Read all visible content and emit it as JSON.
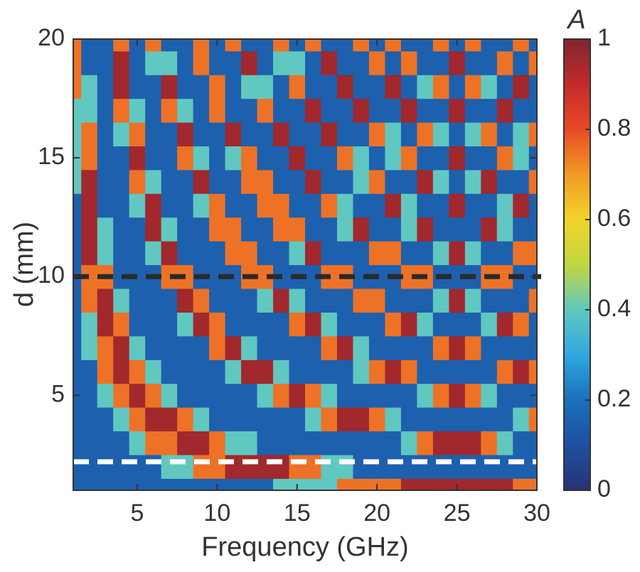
{
  "chart_data": {
    "type": "heatmap",
    "xlabel": "Frequency (GHz)",
    "ylabel": "d (mm)",
    "colorbar_label": "A",
    "x": [
      1,
      2,
      3,
      4,
      5,
      6,
      7,
      8,
      9,
      10,
      11,
      12,
      13,
      14,
      15,
      16,
      17,
      18,
      19,
      20,
      21,
      22,
      23,
      24,
      25,
      26,
      27,
      28,
      29,
      30
    ],
    "y": [
      1,
      2,
      3,
      4,
      5,
      6,
      7,
      8,
      9,
      10,
      11,
      12,
      13,
      14,
      15,
      16,
      17,
      18,
      19,
      20
    ],
    "xlim": [
      1,
      30
    ],
    "ylim": [
      1,
      20
    ],
    "xticks": [
      5,
      10,
      15,
      20,
      25,
      30
    ],
    "yticks": [
      5,
      10,
      15,
      20
    ],
    "clim": [
      0,
      1
    ],
    "cticks": [
      0,
      0.2,
      0.4,
      0.6,
      0.8,
      1
    ],
    "colormap": [
      "#283276",
      "#1f4fa0",
      "#1a70bc",
      "#30a8e0",
      "#60c8c0",
      "#c0d640",
      "#f2d42a",
      "#f29a26",
      "#e84a26",
      "#c42a2a",
      "#7e2630"
    ],
    "hlines": [
      {
        "y": 10,
        "color": "#2a2a2a"
      },
      {
        "y": 2.2,
        "color": "#ffffff"
      }
    ],
    "z": [
      [
        0.15,
        0.15,
        0.15,
        0.15,
        0.15,
        0.15,
        0.15,
        0.15,
        0.15,
        0.15,
        0.15,
        0.15,
        0.15,
        0.4,
        0.4,
        0.4,
        0.4,
        0.75,
        0.75,
        0.75,
        0.75,
        0.95,
        0.95,
        0.95,
        0.95,
        0.95,
        0.95,
        0.95,
        0.75,
        0.75
      ],
      [
        0.15,
        0.15,
        0.15,
        0.15,
        0.15,
        0.15,
        0.4,
        0.4,
        0.75,
        0.75,
        0.95,
        0.95,
        0.95,
        0.95,
        0.75,
        0.75,
        0.4,
        0.4,
        0.15,
        0.15,
        0.15,
        0.15,
        0.15,
        0.15,
        0.15,
        0.15,
        0.15,
        0.15,
        0.15,
        0.15
      ],
      [
        0.15,
        0.15,
        0.15,
        0.15,
        0.4,
        0.75,
        0.75,
        0.95,
        0.95,
        0.75,
        0.4,
        0.4,
        0.15,
        0.15,
        0.15,
        0.15,
        0.15,
        0.15,
        0.15,
        0.15,
        0.15,
        0.4,
        0.75,
        0.95,
        0.95,
        0.95,
        0.75,
        0.4,
        0.15,
        0.15
      ],
      [
        0.15,
        0.15,
        0.15,
        0.4,
        0.75,
        0.95,
        0.95,
        0.75,
        0.4,
        0.15,
        0.15,
        0.15,
        0.15,
        0.15,
        0.15,
        0.4,
        0.75,
        0.95,
        0.95,
        0.75,
        0.4,
        0.15,
        0.15,
        0.15,
        0.15,
        0.15,
        0.15,
        0.15,
        0.4,
        0.75
      ],
      [
        0.15,
        0.15,
        0.4,
        0.75,
        0.95,
        0.75,
        0.4,
        0.15,
        0.15,
        0.15,
        0.15,
        0.15,
        0.4,
        0.75,
        0.95,
        0.75,
        0.4,
        0.15,
        0.15,
        0.15,
        0.15,
        0.15,
        0.4,
        0.75,
        0.95,
        0.75,
        0.4,
        0.15,
        0.15,
        0.15
      ],
      [
        0.15,
        0.15,
        0.75,
        0.95,
        0.75,
        0.4,
        0.15,
        0.15,
        0.15,
        0.15,
        0.4,
        0.95,
        0.95,
        0.4,
        0.15,
        0.15,
        0.15,
        0.15,
        0.4,
        0.75,
        0.95,
        0.75,
        0.15,
        0.15,
        0.15,
        0.15,
        0.15,
        0.75,
        0.95,
        0.75
      ],
      [
        0.15,
        0.4,
        0.75,
        0.95,
        0.4,
        0.15,
        0.15,
        0.15,
        0.15,
        0.75,
        0.95,
        0.4,
        0.15,
        0.15,
        0.15,
        0.15,
        0.75,
        0.95,
        0.4,
        0.15,
        0.15,
        0.15,
        0.15,
        0.75,
        0.95,
        0.75,
        0.15,
        0.15,
        0.15,
        0.15
      ],
      [
        0.15,
        0.4,
        0.95,
        0.75,
        0.15,
        0.15,
        0.15,
        0.4,
        0.95,
        0.75,
        0.15,
        0.15,
        0.15,
        0.15,
        0.75,
        0.95,
        0.4,
        0.15,
        0.15,
        0.15,
        0.75,
        0.95,
        0.4,
        0.15,
        0.15,
        0.15,
        0.4,
        0.95,
        0.75,
        0.15
      ],
      [
        0.15,
        0.75,
        0.95,
        0.4,
        0.15,
        0.15,
        0.15,
        0.95,
        0.75,
        0.15,
        0.15,
        0.15,
        0.4,
        0.95,
        0.4,
        0.15,
        0.15,
        0.15,
        0.75,
        0.75,
        0.15,
        0.15,
        0.15,
        0.4,
        0.95,
        0.4,
        0.15,
        0.15,
        0.15,
        0.75
      ],
      [
        0.15,
        0.75,
        0.75,
        0.15,
        0.15,
        0.15,
        0.75,
        0.75,
        0.15,
        0.15,
        0.15,
        0.75,
        0.75,
        0.15,
        0.15,
        0.15,
        0.75,
        0.75,
        0.15,
        0.15,
        0.15,
        0.75,
        0.75,
        0.15,
        0.15,
        0.15,
        0.75,
        0.75,
        0.15,
        0.15
      ],
      [
        0.15,
        0.95,
        0.4,
        0.15,
        0.15,
        0.4,
        0.95,
        0.15,
        0.15,
        0.15,
        0.75,
        0.75,
        0.15,
        0.15,
        0.4,
        0.95,
        0.15,
        0.15,
        0.15,
        0.75,
        0.75,
        0.15,
        0.15,
        0.4,
        0.95,
        0.4,
        0.15,
        0.15,
        0.75,
        0.75
      ],
      [
        0.15,
        0.95,
        0.4,
        0.15,
        0.15,
        0.95,
        0.4,
        0.15,
        0.15,
        0.75,
        0.75,
        0.15,
        0.15,
        0.75,
        0.75,
        0.15,
        0.15,
        0.4,
        0.95,
        0.15,
        0.15,
        0.4,
        0.95,
        0.15,
        0.15,
        0.15,
        0.95,
        0.4,
        0.15,
        0.15
      ],
      [
        0.15,
        0.95,
        0.15,
        0.15,
        0.4,
        0.95,
        0.15,
        0.15,
        0.4,
        0.75,
        0.15,
        0.15,
        0.75,
        0.75,
        0.15,
        0.15,
        0.75,
        0.4,
        0.15,
        0.15,
        0.95,
        0.4,
        0.15,
        0.15,
        0.95,
        0.15,
        0.15,
        0.4,
        0.95,
        0.15
      ],
      [
        0.4,
        0.95,
        0.15,
        0.15,
        0.75,
        0.4,
        0.15,
        0.15,
        0.95,
        0.15,
        0.15,
        0.75,
        0.75,
        0.15,
        0.15,
        0.95,
        0.15,
        0.15,
        0.4,
        0.75,
        0.15,
        0.15,
        0.95,
        0.4,
        0.15,
        0.4,
        0.95,
        0.15,
        0.15,
        0.75
      ],
      [
        0.4,
        0.75,
        0.15,
        0.15,
        0.95,
        0.15,
        0.15,
        0.75,
        0.4,
        0.15,
        0.4,
        0.75,
        0.15,
        0.15,
        0.95,
        0.15,
        0.15,
        0.75,
        0.4,
        0.15,
        0.4,
        0.75,
        0.15,
        0.15,
        0.95,
        0.15,
        0.15,
        0.75,
        0.4,
        0.15
      ],
      [
        0.4,
        0.75,
        0.15,
        0.4,
        0.75,
        0.15,
        0.15,
        0.95,
        0.15,
        0.15,
        0.95,
        0.15,
        0.15,
        0.95,
        0.15,
        0.15,
        0.95,
        0.15,
        0.15,
        0.75,
        0.4,
        0.15,
        0.75,
        0.4,
        0.15,
        0.4,
        0.75,
        0.15,
        0.4,
        0.75
      ],
      [
        0.4,
        0.4,
        0.15,
        0.75,
        0.4,
        0.15,
        0.75,
        0.4,
        0.15,
        0.75,
        0.15,
        0.15,
        0.75,
        0.15,
        0.15,
        0.95,
        0.15,
        0.15,
        0.95,
        0.15,
        0.15,
        0.95,
        0.15,
        0.15,
        0.95,
        0.15,
        0.15,
        0.95,
        0.15,
        0.15
      ],
      [
        0.75,
        0.4,
        0.15,
        0.95,
        0.15,
        0.15,
        0.95,
        0.15,
        0.15,
        0.75,
        0.15,
        0.4,
        0.4,
        0.15,
        0.75,
        0.15,
        0.15,
        0.95,
        0.15,
        0.15,
        0.95,
        0.15,
        0.4,
        0.75,
        0.15,
        0.75,
        0.4,
        0.15,
        0.95,
        0.15
      ],
      [
        0.75,
        0.15,
        0.15,
        0.95,
        0.15,
        0.4,
        0.4,
        0.15,
        0.75,
        0.15,
        0.15,
        0.95,
        0.15,
        0.4,
        0.4,
        0.15,
        0.95,
        0.15,
        0.15,
        0.75,
        0.15,
        0.75,
        0.15,
        0.15,
        0.95,
        0.15,
        0.15,
        0.75,
        0.15,
        0.75
      ],
      [
        0.75,
        0.15,
        0.15,
        0.75,
        0.15,
        0.75,
        0.15,
        0.15,
        0.75,
        0.15,
        0.75,
        0.15,
        0.15,
        0.75,
        0.15,
        0.75,
        0.15,
        0.15,
        0.75,
        0.15,
        0.75,
        0.15,
        0.15,
        0.75,
        0.15,
        0.75,
        0.15,
        0.15,
        0.75,
        0.15
      ]
    ]
  }
}
